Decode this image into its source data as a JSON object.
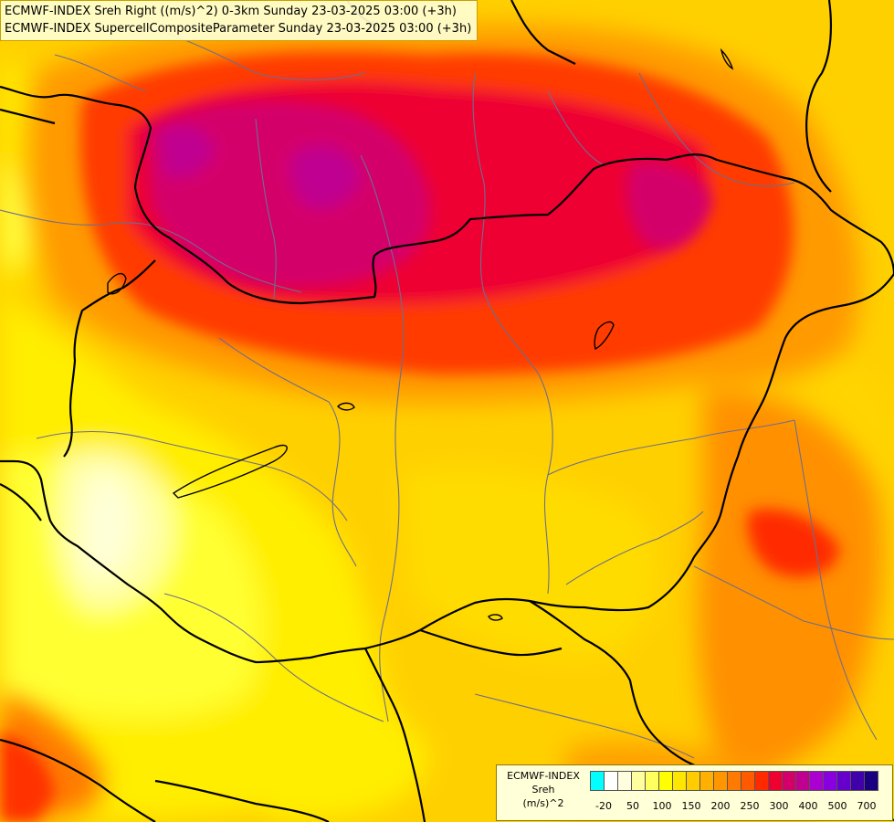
{
  "title": {
    "line1": "ECMWF-INDEX Sreh Right ((m/s)^2) 0-3km Sunday 23-03-2025 03:00 (+3h)",
    "line2": "ECMWF-INDEX SupercellCompositeParameter Sunday 23-03-2025 03:00 (+3h)"
  },
  "legend": {
    "source": "ECMWF-INDEX",
    "variable": "Sreh",
    "unit": "(m/s)^2",
    "colors": [
      "#00ffff",
      "#ffffff",
      "#ffffe0",
      "#ffffa0",
      "#ffff60",
      "#ffff00",
      "#ffe600",
      "#ffcc00",
      "#ffb000",
      "#ff9600",
      "#ff7a00",
      "#ff5a00",
      "#ff2a00",
      "#ee0030",
      "#d4006a",
      "#c00090",
      "#aa00d0",
      "#8800e0",
      "#6600cc",
      "#4000aa",
      "#1a0080"
    ],
    "tick_labels": [
      "-20",
      "50",
      "100",
      "150",
      "200",
      "250",
      "300",
      "400",
      "500",
      "700"
    ]
  },
  "colors": {
    "background": "#ffd000",
    "border_country": "#000000",
    "border_region": "#6e6e8c"
  }
}
